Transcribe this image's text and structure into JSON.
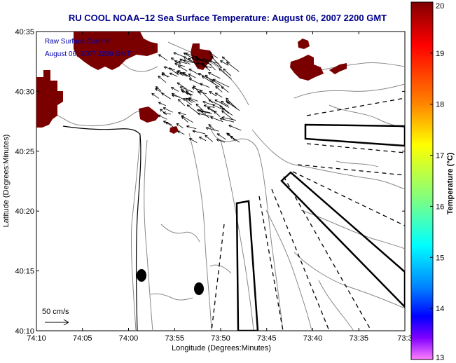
{
  "title": "RU COOL  NOAA–12  Sea Surface Temperature:  August 06, 2007 2200 GMT",
  "annotations": {
    "line1": "Raw Surface Current",
    "line2": "August 06, 2007 2200 GMT",
    "scale_label": "50 cm/s"
  },
  "axes": {
    "xlabel": "Longitude (Degrees:Minutes)",
    "ylabel": "Latitude (Degrees:Minutes)",
    "xticks": [
      "74:10",
      "74:05",
      "74:00",
      "73:55",
      "73:50",
      "73:45",
      "73:40",
      "73:35",
      "73:3"
    ],
    "yticks": [
      "40:35",
      "40:30",
      "40:25",
      "40:20",
      "40:15",
      "40:10"
    ]
  },
  "colorbar": {
    "label": "Temperature (°C)",
    "ticks": [
      "20",
      "19",
      "18",
      "17",
      "16",
      "15",
      "14",
      "13"
    ]
  },
  "colors": {
    "title": "#00008b",
    "land": "#7a0000",
    "contour": "#888888"
  }
}
